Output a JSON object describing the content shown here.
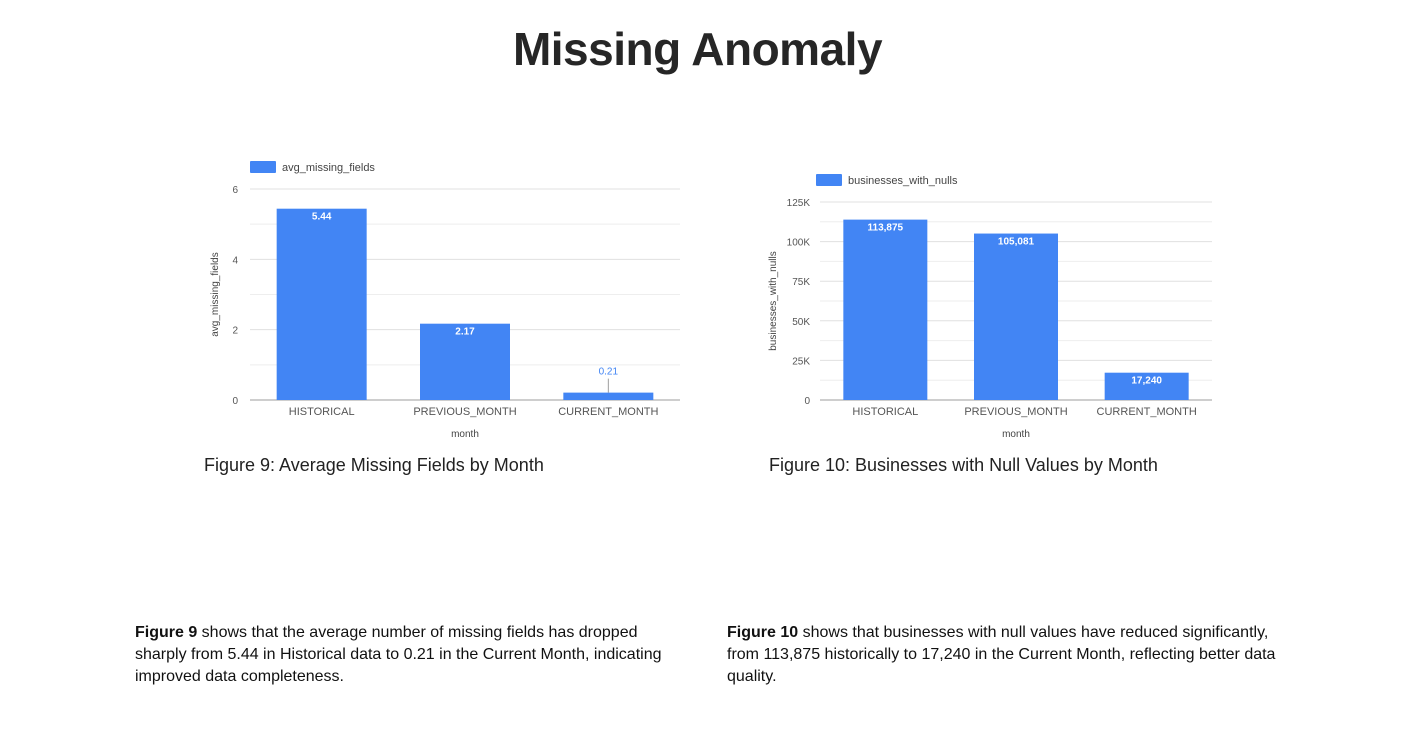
{
  "page": {
    "title": "Missing Anomaly"
  },
  "captions": {
    "fig9": "Figure 9: Average Missing Fields by Month",
    "fig10": "Figure 10: Businesses with Null Values by Month"
  },
  "descriptions": {
    "fig9_lead": "Figure 9",
    "fig9_text": " shows that the average number of missing fields has dropped sharply from 5.44 in Historical data to 0.21 in the Current Month, indicating improved data completeness.",
    "fig10_lead": "Figure 10",
    "fig10_text": " shows that businesses with null values have reduced significantly, from 113,875 historically to 17,240 in the Current Month, reflecting better data quality."
  },
  "colors": {
    "bar": "#4285f4",
    "grid": "#e0e0e0",
    "axis": "#9e9e9e",
    "tick_text": "#555555",
    "label_inside": "#ffffff",
    "label_outside": "#4285f4"
  },
  "chart_data": [
    {
      "type": "bar",
      "categories": [
        "HISTORICAL",
        "PREVIOUS_MONTH",
        "CURRENT_MONTH"
      ],
      "series": [
        {
          "name": "avg_missing_fields",
          "values": [
            5.44,
            2.17,
            0.21
          ]
        }
      ],
      "data_labels": [
        "5.44",
        "2.17",
        "0.21"
      ],
      "xlabel": "month",
      "ylabel": "avg_missing_fields",
      "ylim": [
        0,
        6
      ],
      "yticks": [
        0,
        2,
        4,
        6
      ],
      "ytick_labels": [
        "0",
        "2",
        "4",
        "6"
      ],
      "grid": true,
      "legend": "top-left"
    },
    {
      "type": "bar",
      "categories": [
        "HISTORICAL",
        "PREVIOUS_MONTH",
        "CURRENT_MONTH"
      ],
      "series": [
        {
          "name": "businesses_with_nulls",
          "values": [
            113875,
            105081,
            17240
          ]
        }
      ],
      "data_labels": [
        "113,875",
        "105,081",
        "17,240"
      ],
      "xlabel": "month",
      "ylabel": "businesses_with_nulls",
      "ylim": [
        0,
        125000
      ],
      "yticks": [
        0,
        25000,
        50000,
        75000,
        100000,
        125000
      ],
      "ytick_labels": [
        "0",
        "25K",
        "50K",
        "75K",
        "100K",
        "125K"
      ],
      "grid": true,
      "legend": "top-left"
    }
  ]
}
